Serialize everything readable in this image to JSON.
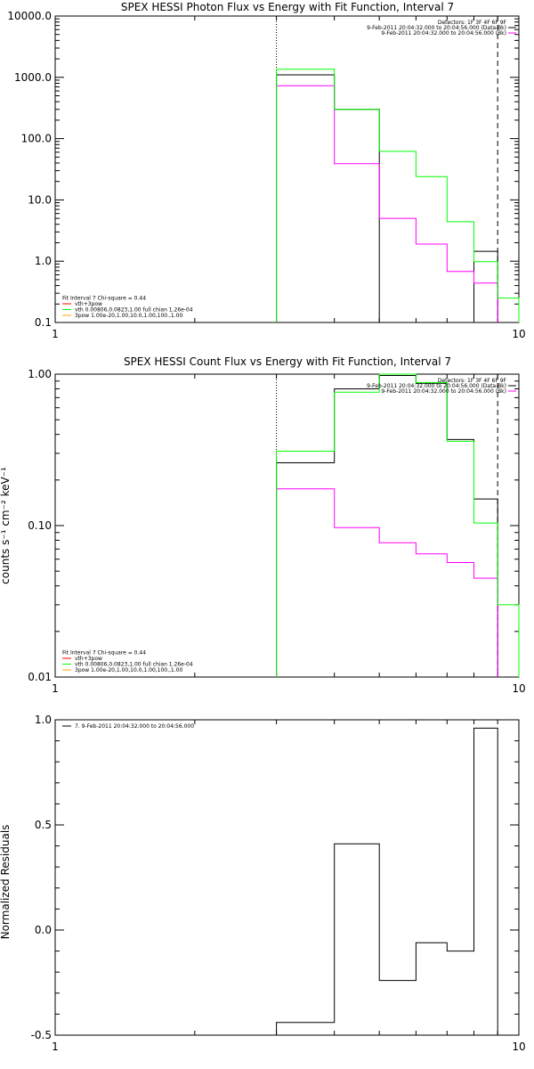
{
  "chart_data": [
    {
      "type": "line",
      "title": "SPEX HESSI Photon Flux vs Energy with Fit Function, Interval 7",
      "xlabel": "",
      "ylabel": "",
      "xscale": "log",
      "yscale": "log",
      "xlim": [
        1,
        10
      ],
      "ylim": [
        0.1,
        10000
      ],
      "xticks": [
        {
          "v": 1,
          "label": "1"
        },
        {
          "v": 10,
          "label": "10"
        }
      ],
      "yticks": [
        {
          "v": 0.1,
          "label": "0.1"
        },
        {
          "v": 1,
          "label": "1.0"
        },
        {
          "v": 10,
          "label": "10.0"
        },
        {
          "v": 100,
          "label": "100.0"
        },
        {
          "v": 1000,
          "label": "1000.0"
        },
        {
          "v": 10000,
          "label": "10000.0"
        }
      ],
      "vlines": [
        {
          "x": 3,
          "color": "#000000",
          "dash": "1,2"
        },
        {
          "x": 9,
          "color": "#000000",
          "dash": "6,4"
        }
      ],
      "series": [
        {
          "color": "#000000",
          "edges": [
            3,
            4,
            5,
            6,
            7,
            8,
            9
          ],
          "values": [
            1100,
            300,
            0.1,
            0.1,
            0.1,
            1.45
          ]
        },
        {
          "color": "#ff00ff",
          "edges": [
            3,
            4,
            5,
            6,
            7,
            8,
            9
          ],
          "values": [
            730,
            39,
            5,
            1.9,
            0.68,
            0.44
          ]
        },
        {
          "color": "#00ff00",
          "edges": [
            3,
            4,
            5,
            6,
            7,
            8,
            9,
            10
          ],
          "values": [
            1350,
            300,
            62,
            24,
            4.4,
            0.98,
            0.25
          ]
        }
      ],
      "legend_top": {
        "placement": "top-right",
        "entries": [
          {
            "text": "Detectors: 1F 3F 4F 6F 9F",
            "color": ""
          },
          {
            "text": "9-Feb-2011 20:04:32.000 to 20:04:56.000 (Data-Bk)",
            "color": "#000000"
          },
          {
            "text": "9-Feb-2011 20:04:32.000 to 20:04:56.000 (Bk)",
            "color": "#ff00ff"
          }
        ]
      },
      "legend_bottom": {
        "placement": "bottom-left",
        "entries": [
          {
            "text": "Fit Interval 7   Chi-square = 0.44",
            "color": ""
          },
          {
            "text": "vth+3pow",
            "color": "#ff0000"
          },
          {
            "text": "vth 0.00806,0.0823,1.00  full chian 1.26e-04",
            "color": "#00ff00"
          },
          {
            "text": "3pow 1.00e-20,1.00,10.0,1.00,100.,1.00",
            "color": "#ffaa00"
          }
        ]
      }
    },
    {
      "type": "line",
      "title": "SPEX HESSI Count Flux vs Energy with Fit Function, Interval 7",
      "xlabel": "",
      "ylabel": "counts s⁻¹ cm⁻² keV⁻¹",
      "xscale": "log",
      "yscale": "log",
      "xlim": [
        1,
        10
      ],
      "ylim": [
        0.01,
        1.0
      ],
      "xticks": [
        {
          "v": 1,
          "label": "1"
        },
        {
          "v": 10,
          "label": "10"
        }
      ],
      "yticks": [
        {
          "v": 0.01,
          "label": "0.01"
        },
        {
          "v": 0.1,
          "label": "0.10"
        },
        {
          "v": 1,
          "label": "1.00"
        }
      ],
      "vlines": [
        {
          "x": 3,
          "color": "#000000",
          "dash": "1,2"
        },
        {
          "x": 9,
          "color": "#000000",
          "dash": "6,4"
        }
      ],
      "series": [
        {
          "color": "#000000",
          "edges": [
            3,
            4,
            5,
            6,
            7,
            8,
            9
          ],
          "values": [
            0.26,
            0.8,
            0.98,
            0.87,
            0.37,
            0.15
          ]
        },
        {
          "color": "#ff00ff",
          "edges": [
            3,
            4,
            5,
            6,
            7,
            8,
            9
          ],
          "values": [
            0.175,
            0.097,
            0.077,
            0.065,
            0.057,
            0.045
          ]
        },
        {
          "color": "#00ff00",
          "edges": [
            3,
            4,
            5,
            6,
            7,
            8,
            9,
            10
          ],
          "values": [
            0.31,
            0.76,
            1.0,
            0.88,
            0.36,
            0.104,
            0.03
          ]
        }
      ],
      "legend_top": {
        "placement": "top-right",
        "entries": [
          {
            "text": "Detectors: 1F 3F 4F 6F 9F",
            "color": ""
          },
          {
            "text": "9-Feb-2011 20:04:32.000 to 20:04:56.000 (Data-Bk)",
            "color": "#000000"
          },
          {
            "text": "9-Feb-2011 20:04:32.000 to 20:04:56.000 (Bk)",
            "color": "#ff00ff"
          }
        ]
      },
      "legend_bottom": {
        "placement": "bottom-left",
        "entries": [
          {
            "text": "Fit Interval 7   Chi-square = 0.44",
            "color": ""
          },
          {
            "text": "vth+3pow",
            "color": "#ff0000"
          },
          {
            "text": "vth 0.00806,0.0823,1.00  full chian 1.26e-04",
            "color": "#00ff00"
          },
          {
            "text": "3pow 1.00e-20,1.00,10.0,1.00,100.,1.00",
            "color": "#ffaa00"
          }
        ]
      }
    },
    {
      "type": "line",
      "title": "",
      "xlabel": "",
      "ylabel": "Normalized Residuals",
      "xscale": "log",
      "yscale": "linear",
      "xlim": [
        1,
        10
      ],
      "ylim": [
        -0.5,
        1.0
      ],
      "xticks": [
        {
          "v": 1,
          "label": "1"
        },
        {
          "v": 10,
          "label": "10"
        }
      ],
      "yticks": [
        {
          "v": -0.5,
          "label": "-0.5"
        },
        {
          "v": 0,
          "label": "0.0"
        },
        {
          "v": 0.5,
          "label": "0.5"
        },
        {
          "v": 1,
          "label": "1.0"
        }
      ],
      "vlines": [],
      "series": [
        {
          "color": "#000000",
          "edges": [
            3,
            4,
            5,
            6,
            7,
            8,
            9
          ],
          "values": [
            -0.44,
            0.41,
            -0.24,
            -0.06,
            -0.1,
            0.96
          ]
        }
      ],
      "legend_top": {
        "placement": "top-left",
        "entries": [
          {
            "text": "7.  9-Feb-2011 20:04:32.000 to 20:04:56.000",
            "color": "#000000"
          }
        ]
      },
      "legend_bottom": {
        "placement": "",
        "entries": []
      }
    }
  ]
}
